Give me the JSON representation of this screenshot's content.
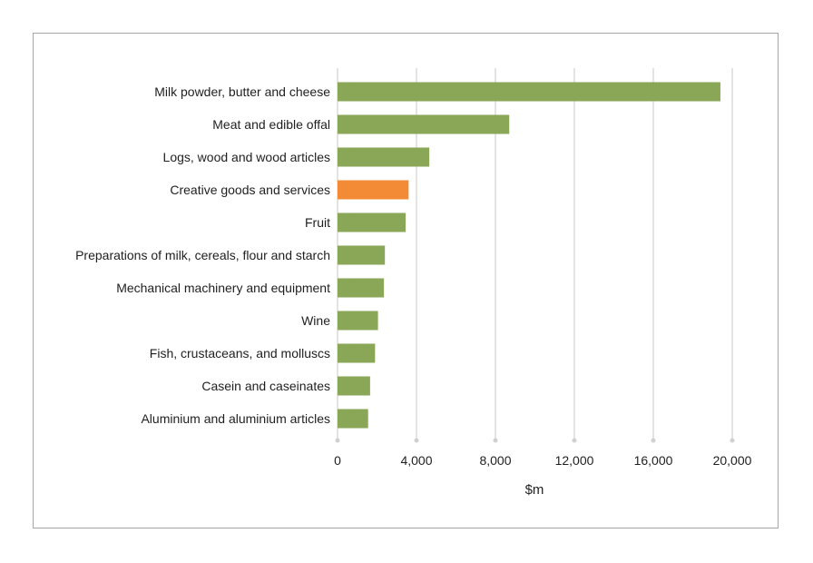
{
  "chart_data": {
    "type": "bar",
    "orientation": "horizontal",
    "categories": [
      "Milk powder, butter and cheese",
      "Meat and edible offal",
      "Logs, wood and wood articles",
      "Creative goods and services",
      "Fruit",
      "Preparations of milk, cereals, flour and starch",
      "Mechanical machinery and equipment",
      "Wine",
      "Fish, crustaceans, and molluscs",
      "Casein and caseinates",
      "Aluminium and aluminium articles"
    ],
    "values": [
      19400,
      8700,
      4650,
      3600,
      3450,
      2400,
      2350,
      2050,
      1900,
      1650,
      1550
    ],
    "highlight_index": 3,
    "xlabel": "$m",
    "xlim": [
      0,
      20000
    ],
    "xticks": [
      0,
      4000,
      8000,
      12000,
      16000,
      20000
    ],
    "xtick_labels": [
      "0",
      "4,000",
      "8,000",
      "12,000",
      "16,000",
      "20,000"
    ],
    "grid": true,
    "colors": {
      "bar": "#8aa657",
      "highlight": "#f28a36",
      "grid": "#d0d0d0"
    }
  }
}
